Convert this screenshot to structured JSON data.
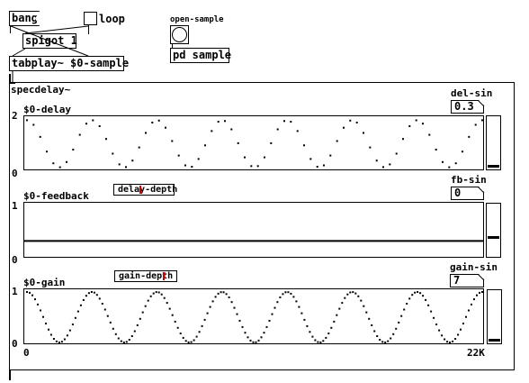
{
  "top": {
    "bang_label": "bang",
    "loop_label": "loop",
    "spigot_label": "spigot 1",
    "tabplay_label": "tabplay~ $0-sample",
    "open_sample_label": "open-sample",
    "pd_sample_label": "pd sample"
  },
  "specdelay": {
    "title": "specdelay~",
    "delay": {
      "array_name": "$0-delay",
      "y_max_label": "2",
      "y_min_label": "0",
      "number_label": "del-sin",
      "number_value": "0.3",
      "slider_level": 0.02
    },
    "feedback": {
      "array_name": "$0-feedback",
      "y_max_label": "1",
      "y_min_label": "0",
      "number_label": "fb-sin",
      "number_value": "0",
      "slider_level": 0.35,
      "depth_label": "delay-depth",
      "depth_level": 0.45,
      "line_value": 0.28
    },
    "gain": {
      "array_name": "$0-gain",
      "y_max_label": "1",
      "y_min_label": "0",
      "number_label": "gain-sin",
      "number_value": "7",
      "slider_level": 0.02,
      "depth_label": "gain-depth",
      "depth_level": 0.82
    },
    "x_min_label": "0",
    "x_max_label": "22K"
  },
  "chart_data": [
    {
      "type": "scatter",
      "name": "$0-delay",
      "ylim": [
        0,
        2
      ],
      "cycles": 7,
      "amplitude": 0.95,
      "offset": 1.0,
      "points": 70,
      "style": "dots"
    },
    {
      "type": "line",
      "name": "$0-feedback",
      "ylim": [
        0,
        1
      ],
      "values": [
        0.28
      ],
      "style": "flat"
    },
    {
      "type": "line",
      "name": "$0-gain",
      "ylim": [
        0,
        1
      ],
      "cycles": 7,
      "amplitude": 0.5,
      "offset": 0.5,
      "points": 170,
      "style": "dots"
    }
  ]
}
